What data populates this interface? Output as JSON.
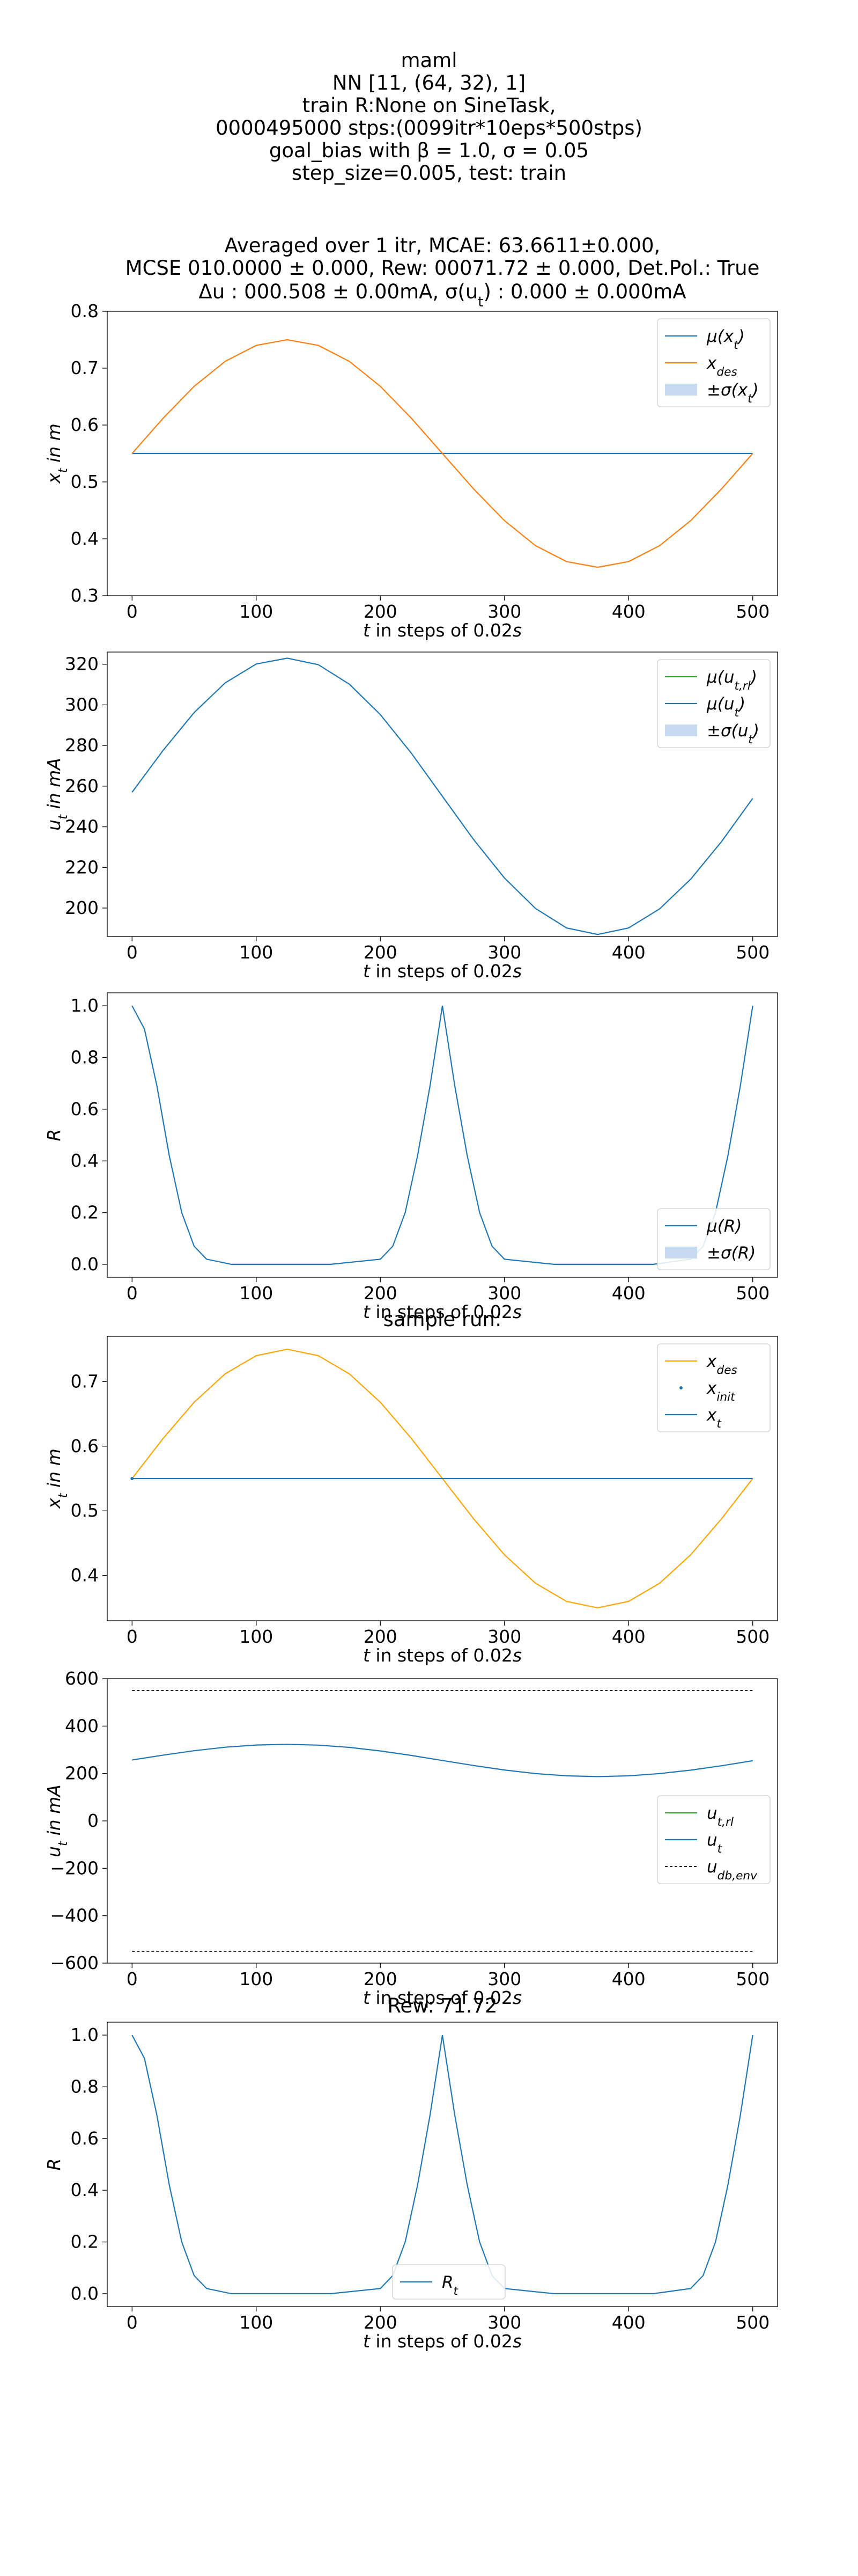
{
  "header": {
    "lines": [
      "maml",
      "NN [11, (64, 32), 1]",
      "train R:None on SineTask,",
      "0000495000 stps:(0099itr*10eps*500stps)",
      "goal_bias with β = 1.0, σ = 0.05",
      "step_size=0.005, test: train"
    ]
  },
  "colors": {
    "blue": "#1f77b4",
    "orange": "#ff7f0e",
    "gold": "#ffa500",
    "green": "#2ca02c",
    "band": "#c6dbef",
    "black": "#000000"
  },
  "chart_data": [
    {
      "id": "avg-position",
      "type": "line",
      "title_lines": [
        "Averaged over 1 itr, MCAE: 63.6611±0.000,",
        "MCSE 010.0000 ± 0.000, Rew: 00071.72 ± 0.000, Det.Pol.: True",
        "Δu : 000.508 ± 0.00mA, σ(u_t) : 0.000 ± 0.000mA"
      ],
      "xlabel": "t in steps of 0.02s",
      "ylabel": "x_t in m",
      "xlim": [
        -20,
        520
      ],
      "ylim": [
        0.3,
        0.8
      ],
      "xticks": [
        0,
        100,
        200,
        300,
        400,
        500
      ],
      "xtick_labels": [
        "0",
        "100",
        "200",
        "300",
        "400",
        "500"
      ],
      "yticks": [
        0.3,
        0.4,
        0.5,
        0.6,
        0.7,
        0.8
      ],
      "ytick_labels": [
        "0.3",
        "0.4",
        "0.5",
        "0.6",
        "0.7",
        "0.8"
      ],
      "legend_position": "upper right",
      "legend": [
        {
          "label": "μ(x_t)",
          "kind": "line",
          "color": "#1f77b4"
        },
        {
          "label": "x_des",
          "kind": "line",
          "color": "#ff7f0e"
        },
        {
          "label": "±σ(x_t)",
          "kind": "patch",
          "color": "#c6dbef"
        }
      ],
      "series": [
        {
          "name": "μ(x_t)",
          "color": "#1f77b4",
          "x": [
            0,
            500
          ],
          "y": [
            0.55,
            0.55
          ]
        },
        {
          "name": "x_des",
          "color": "#ff7f0e",
          "x": [
            0,
            25,
            50,
            75,
            100,
            125,
            150,
            175,
            200,
            225,
            250,
            275,
            300,
            325,
            350,
            375,
            400,
            425,
            450,
            475,
            500
          ],
          "y": [
            0.55,
            0.612,
            0.668,
            0.712,
            0.74,
            0.75,
            0.74,
            0.712,
            0.668,
            0.612,
            0.55,
            0.488,
            0.432,
            0.388,
            0.36,
            0.35,
            0.36,
            0.388,
            0.432,
            0.488,
            0.55
          ]
        }
      ]
    },
    {
      "id": "avg-current",
      "type": "line",
      "xlabel": "t in steps of 0.02s",
      "ylabel": "u_t in mA",
      "xlim": [
        -20,
        520
      ],
      "ylim": [
        186,
        326
      ],
      "xticks": [
        0,
        100,
        200,
        300,
        400,
        500
      ],
      "xtick_labels": [
        "0",
        "100",
        "200",
        "300",
        "400",
        "500"
      ],
      "yticks": [
        200,
        220,
        240,
        260,
        280,
        300,
        320
      ],
      "ytick_labels": [
        "200",
        "220",
        "240",
        "260",
        "280",
        "300",
        "320"
      ],
      "legend_position": "upper right",
      "legend": [
        {
          "label": "μ(u_t,rl)",
          "kind": "line",
          "color": "#2ca02c"
        },
        {
          "label": "μ(u_t)",
          "kind": "line",
          "color": "#1f77b4"
        },
        {
          "label": "±σ(u_t)",
          "kind": "patch",
          "color": "#c6dbef"
        }
      ],
      "series": [
        {
          "name": "μ(u_t)",
          "color": "#1f77b4",
          "x": [
            0,
            25,
            50,
            75,
            100,
            125,
            150,
            175,
            200,
            225,
            250,
            275,
            300,
            325,
            350,
            375,
            400,
            425,
            450,
            475,
            500
          ],
          "y": [
            257,
            277.6,
            296.2,
            310.8,
            320.1,
            323,
            319.8,
            310.2,
            295.2,
            276.2,
            255,
            233.8,
            214.8,
            199.8,
            190.2,
            187,
            190.2,
            199.6,
            214.2,
            232.8,
            254
          ]
        }
      ]
    },
    {
      "id": "avg-reward",
      "type": "line",
      "xlabel": "t in steps of 0.02s",
      "ylabel": "R",
      "xlim": [
        -20,
        520
      ],
      "ylim": [
        -0.05,
        1.05
      ],
      "xticks": [
        0,
        100,
        200,
        300,
        400,
        500
      ],
      "xtick_labels": [
        "0",
        "100",
        "200",
        "300",
        "400",
        "500"
      ],
      "yticks": [
        0.0,
        0.2,
        0.4,
        0.6,
        0.8,
        1.0
      ],
      "ytick_labels": [
        "0.0",
        "0.2",
        "0.4",
        "0.6",
        "0.8",
        "1.0"
      ],
      "legend_position": "lower right",
      "legend": [
        {
          "label": "μ(R)",
          "kind": "line",
          "color": "#1f77b4"
        },
        {
          "label": "±σ(R)",
          "kind": "patch",
          "color": "#c6dbef"
        }
      ],
      "series": [
        {
          "name": "μ(R)",
          "color": "#1f77b4",
          "x": [
            0,
            10,
            20,
            30,
            40,
            50,
            60,
            80,
            120,
            160,
            200,
            210,
            220,
            230,
            240,
            250,
            260,
            270,
            280,
            290,
            300,
            340,
            380,
            420,
            450,
            460,
            470,
            480,
            490,
            500
          ],
          "y": [
            1.0,
            0.91,
            0.69,
            0.42,
            0.2,
            0.07,
            0.02,
            0.0,
            0.0,
            0.0,
            0.02,
            0.07,
            0.2,
            0.42,
            0.69,
            1.0,
            0.69,
            0.42,
            0.2,
            0.07,
            0.02,
            0.0,
            0.0,
            0.0,
            0.02,
            0.07,
            0.2,
            0.42,
            0.69,
            1.0
          ]
        }
      ]
    },
    {
      "id": "sample-position",
      "type": "line",
      "title_lines": [
        "sample run:"
      ],
      "xlabel": "t in steps of 0.02s",
      "ylabel": "x_t in m",
      "xlim": [
        -20,
        520
      ],
      "ylim": [
        0.33,
        0.77
      ],
      "xticks": [
        0,
        100,
        200,
        300,
        400,
        500
      ],
      "xtick_labels": [
        "0",
        "100",
        "200",
        "300",
        "400",
        "500"
      ],
      "yticks": [
        0.4,
        0.5,
        0.6,
        0.7
      ],
      "ytick_labels": [
        "0.4",
        "0.5",
        "0.6",
        "0.7"
      ],
      "legend_position": "upper right",
      "legend": [
        {
          "label": "x_des",
          "kind": "line",
          "color": "#ffa500"
        },
        {
          "label": "x_init",
          "kind": "point",
          "color": "#1f77b4"
        },
        {
          "label": "x_t",
          "kind": "line",
          "color": "#1f77b4"
        }
      ],
      "series": [
        {
          "name": "x_des",
          "color": "#ffa500",
          "x": [
            0,
            25,
            50,
            75,
            100,
            125,
            150,
            175,
            200,
            225,
            250,
            275,
            300,
            325,
            350,
            375,
            400,
            425,
            450,
            475,
            500
          ],
          "y": [
            0.55,
            0.612,
            0.668,
            0.712,
            0.74,
            0.75,
            0.74,
            0.712,
            0.668,
            0.612,
            0.55,
            0.488,
            0.432,
            0.388,
            0.36,
            0.35,
            0.36,
            0.388,
            0.432,
            0.488,
            0.55
          ]
        },
        {
          "name": "x_t",
          "color": "#1f77b4",
          "x": [
            0,
            500
          ],
          "y": [
            0.55,
            0.55
          ]
        }
      ],
      "points": [
        {
          "name": "x_init",
          "color": "#1f77b4",
          "x": 0,
          "y": 0.55
        }
      ]
    },
    {
      "id": "sample-current",
      "type": "line",
      "xlabel": "t in steps of 0.02s",
      "ylabel": "u_t in mA",
      "xlim": [
        -20,
        520
      ],
      "ylim": [
        -600,
        600
      ],
      "xticks": [
        0,
        100,
        200,
        300,
        400,
        500
      ],
      "xtick_labels": [
        "0",
        "100",
        "200",
        "300",
        "400",
        "500"
      ],
      "yticks": [
        -600,
        -400,
        -200,
        0,
        200,
        400,
        600
      ],
      "ytick_labels": [
        "−600",
        "−400",
        "−200",
        "0",
        "200",
        "400",
        "600"
      ],
      "legend_position": "center right",
      "legend": [
        {
          "label": "u_t,rl",
          "kind": "line",
          "color": "#2ca02c"
        },
        {
          "label": "u_t",
          "kind": "line",
          "color": "#1f77b4"
        },
        {
          "label": "u_db,env",
          "kind": "dashed",
          "color": "#000000"
        }
      ],
      "series": [
        {
          "name": "u_t",
          "color": "#1f77b4",
          "x": [
            0,
            25,
            50,
            75,
            100,
            125,
            150,
            175,
            200,
            225,
            250,
            275,
            300,
            325,
            350,
            375,
            400,
            425,
            450,
            475,
            500
          ],
          "y": [
            257,
            277.6,
            296.2,
            310.8,
            320.1,
            323,
            319.8,
            310.2,
            295.2,
            276.2,
            255,
            233.8,
            214.8,
            199.8,
            190.2,
            187,
            190.2,
            199.6,
            214.2,
            232.8,
            254
          ]
        },
        {
          "name": "u_db,env",
          "color": "#000000",
          "dashed": true,
          "x": [
            0,
            500
          ],
          "y": [
            550,
            550
          ]
        },
        {
          "name": "u_db,env",
          "color": "#000000",
          "dashed": true,
          "x": [
            0,
            500
          ],
          "y": [
            -550,
            -550
          ]
        }
      ]
    },
    {
      "id": "sample-reward",
      "type": "line",
      "title_lines": [
        "Rew: 71.72"
      ],
      "xlabel": "t in steps of 0.02s",
      "ylabel": "R",
      "xlim": [
        -20,
        520
      ],
      "ylim": [
        -0.05,
        1.05
      ],
      "xticks": [
        0,
        100,
        200,
        300,
        400,
        500
      ],
      "xtick_labels": [
        "0",
        "100",
        "200",
        "300",
        "400",
        "500"
      ],
      "yticks": [
        0.0,
        0.2,
        0.4,
        0.6,
        0.8,
        1.0
      ],
      "ytick_labels": [
        "0.0",
        "0.2",
        "0.4",
        "0.6",
        "0.8",
        "1.0"
      ],
      "legend_position": "lower center",
      "legend": [
        {
          "label": "R_t",
          "kind": "line",
          "color": "#1f77b4"
        }
      ],
      "series": [
        {
          "name": "R_t",
          "color": "#1f77b4",
          "x": [
            0,
            10,
            20,
            30,
            40,
            50,
            60,
            80,
            120,
            160,
            200,
            210,
            220,
            230,
            240,
            250,
            260,
            270,
            280,
            290,
            300,
            340,
            380,
            420,
            450,
            460,
            470,
            480,
            490,
            500
          ],
          "y": [
            1.0,
            0.91,
            0.69,
            0.42,
            0.2,
            0.07,
            0.02,
            0.0,
            0.0,
            0.0,
            0.02,
            0.07,
            0.2,
            0.42,
            0.69,
            1.0,
            0.69,
            0.42,
            0.2,
            0.07,
            0.02,
            0.0,
            0.0,
            0.0,
            0.02,
            0.07,
            0.2,
            0.42,
            0.69,
            1.0
          ]
        }
      ]
    }
  ]
}
